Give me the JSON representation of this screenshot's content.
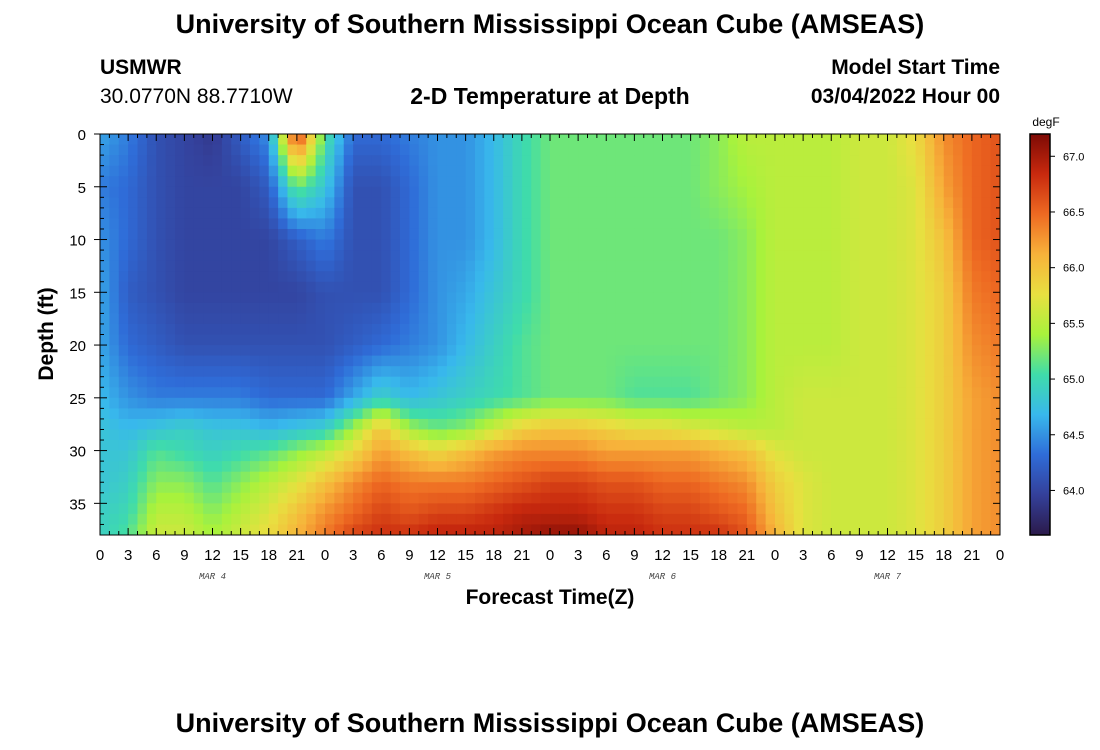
{
  "header": {
    "title": "University of Southern Mississippi Ocean Cube (AMSEAS)",
    "station": "USMWR",
    "coordinates": "30.0770N  88.7710W",
    "subtitle": "2-D Temperature at Depth",
    "model_start_label": "Model Start Time",
    "model_start_value": "03/04/2022 Hour 00"
  },
  "footer": {
    "title": "University of Southern Mississippi Ocean Cube (AMSEAS)"
  },
  "chart_data": {
    "type": "heatmap",
    "ylabel": "Depth (ft)",
    "xlabel": "Forecast Time(Z)",
    "colorbar_unit": "degF",
    "colorbar_ticks": [
      "64.0",
      "64.5",
      "65.0",
      "65.5",
      "66.0",
      "66.5",
      "67.0"
    ],
    "colorbar_range": [
      63.6,
      67.2
    ],
    "colormap": [
      "#2b1a4a",
      "#34409a",
      "#2f6cd8",
      "#38b8ec",
      "#3fdcaa",
      "#a8f23c",
      "#e8e040",
      "#f7b23a",
      "#ee6a22",
      "#c8290e",
      "#7d0a05"
    ],
    "x_tick_labels": [
      "0",
      "3",
      "6",
      "9",
      "12",
      "15",
      "18",
      "21",
      "0",
      "3",
      "6",
      "9",
      "12",
      "15",
      "18",
      "21",
      "0",
      "3",
      "6",
      "9",
      "12",
      "15",
      "18",
      "21",
      "0",
      "3",
      "6",
      "9",
      "12",
      "15",
      "18",
      "21",
      "0"
    ],
    "date_labels": [
      "MAR 4",
      "MAR 5",
      "MAR 6",
      "MAR 7"
    ],
    "y_ticks": [
      0,
      5,
      10,
      15,
      20,
      25,
      30,
      35
    ],
    "y_range": [
      0,
      38
    ],
    "x_range_hours": [
      0,
      96
    ],
    "time_hours": [
      0,
      3,
      6,
      9,
      12,
      15,
      18,
      21,
      24,
      27,
      30,
      33,
      36,
      39,
      42,
      45,
      48,
      51,
      54,
      57,
      60,
      63,
      66,
      69,
      72,
      75,
      78,
      81,
      84,
      87,
      90,
      93,
      96
    ],
    "depth_ft": [
      0,
      5,
      10,
      15,
      20,
      25,
      28,
      30,
      33,
      36,
      38
    ],
    "temperature_degF": [
      [
        64.6,
        64.4,
        64.5,
        64.6,
        64.6,
        64.7,
        64.8,
        64.8,
        64.8,
        64.9,
        64.9
      ],
      [
        64.4,
        64.3,
        64.3,
        64.2,
        64.3,
        64.5,
        64.7,
        64.8,
        64.9,
        65.0,
        65.1
      ],
      [
        64.1,
        64.1,
        64.1,
        64.1,
        64.2,
        64.4,
        64.8,
        65.1,
        65.3,
        65.5,
        65.6
      ],
      [
        64.0,
        64.0,
        64.0,
        64.0,
        64.1,
        64.4,
        64.9,
        65.0,
        65.3,
        65.5,
        65.6
      ],
      [
        63.9,
        64.0,
        64.0,
        64.0,
        64.1,
        64.4,
        64.8,
        64.9,
        65.1,
        65.3,
        65.4
      ],
      [
        64.2,
        64.0,
        64.0,
        64.0,
        64.1,
        64.4,
        64.8,
        65.0,
        65.3,
        65.5,
        65.6
      ],
      [
        64.5,
        64.2,
        64.0,
        64.0,
        64.1,
        64.3,
        64.7,
        65.1,
        65.5,
        65.7,
        65.8
      ],
      [
        66.8,
        65.2,
        64.2,
        64.0,
        64.1,
        64.3,
        64.8,
        65.3,
        65.7,
        66.0,
        66.1
      ],
      [
        65.1,
        64.8,
        64.4,
        64.1,
        64.1,
        64.3,
        64.9,
        65.5,
        66.0,
        66.3,
        66.4
      ],
      [
        64.3,
        64.1,
        64.1,
        64.1,
        64.2,
        64.6,
        65.4,
        65.8,
        66.3,
        66.5,
        66.7
      ],
      [
        64.3,
        64.1,
        64.1,
        64.1,
        64.3,
        64.9,
        66.0,
        66.2,
        66.5,
        66.7,
        66.8
      ],
      [
        64.4,
        64.3,
        64.3,
        64.3,
        64.4,
        64.7,
        65.4,
        66.0,
        66.4,
        66.6,
        66.8
      ],
      [
        64.5,
        64.5,
        64.5,
        64.5,
        64.5,
        64.8,
        65.2,
        65.8,
        66.4,
        66.7,
        66.9
      ],
      [
        64.5,
        64.5,
        64.5,
        64.6,
        64.7,
        64.9,
        65.3,
        66.0,
        66.4,
        66.7,
        66.9
      ],
      [
        64.7,
        64.7,
        64.7,
        64.8,
        64.9,
        65.0,
        65.6,
        66.2,
        66.5,
        66.8,
        66.9
      ],
      [
        65.0,
        65.0,
        65.0,
        65.0,
        65.1,
        65.1,
        65.9,
        66.3,
        66.6,
        66.9,
        67.0
      ],
      [
        65.2,
        65.2,
        65.2,
        65.2,
        65.2,
        65.2,
        66.0,
        66.3,
        66.7,
        66.9,
        67.1
      ],
      [
        65.2,
        65.2,
        65.2,
        65.2,
        65.2,
        65.2,
        66.0,
        66.3,
        66.7,
        66.9,
        67.1
      ],
      [
        65.2,
        65.2,
        65.2,
        65.2,
        65.2,
        65.2,
        65.9,
        66.2,
        66.6,
        66.8,
        66.9
      ],
      [
        65.2,
        65.2,
        65.2,
        65.2,
        65.2,
        65.1,
        65.8,
        66.2,
        66.6,
        66.8,
        66.9
      ],
      [
        65.2,
        65.2,
        65.2,
        65.2,
        65.2,
        65.1,
        65.8,
        66.2,
        66.5,
        66.7,
        66.8
      ],
      [
        65.2,
        65.2,
        65.2,
        65.2,
        65.2,
        65.1,
        65.7,
        66.2,
        66.5,
        66.7,
        66.8
      ],
      [
        65.3,
        65.3,
        65.2,
        65.2,
        65.2,
        65.2,
        65.6,
        66.1,
        66.4,
        66.6,
        66.8
      ],
      [
        65.5,
        65.4,
        65.3,
        65.3,
        65.3,
        65.3,
        65.5,
        66.0,
        66.3,
        66.5,
        66.6
      ],
      [
        65.5,
        65.5,
        65.5,
        65.5,
        65.5,
        65.5,
        65.5,
        65.7,
        65.9,
        66.0,
        66.1
      ],
      [
        65.5,
        65.5,
        65.5,
        65.5,
        65.5,
        65.6,
        65.6,
        65.6,
        65.7,
        65.7,
        65.7
      ],
      [
        65.5,
        65.5,
        65.5,
        65.5,
        65.5,
        65.6,
        65.6,
        65.6,
        65.6,
        65.6,
        65.6
      ],
      [
        65.6,
        65.6,
        65.6,
        65.6,
        65.6,
        65.6,
        65.6,
        65.6,
        65.6,
        65.6,
        65.6
      ],
      [
        65.6,
        65.6,
        65.6,
        65.6,
        65.6,
        65.6,
        65.6,
        65.6,
        65.6,
        65.6,
        65.6
      ],
      [
        65.8,
        65.7,
        65.7,
        65.7,
        65.7,
        65.7,
        65.7,
        65.7,
        65.7,
        65.7,
        65.7
      ],
      [
        66.3,
        66.2,
        66.0,
        65.9,
        65.9,
        65.9,
        65.9,
        65.9,
        65.9,
        65.9,
        65.9
      ],
      [
        66.5,
        66.5,
        66.5,
        66.4,
        66.3,
        66.2,
        66.2,
        66.2,
        66.2,
        66.2,
        66.2
      ],
      [
        66.6,
        66.6,
        66.6,
        66.5,
        66.4,
        66.3,
        66.3,
        66.3,
        66.3,
        66.3,
        66.3
      ]
    ]
  }
}
